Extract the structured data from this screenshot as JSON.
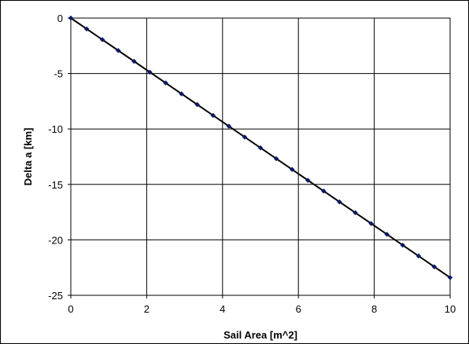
{
  "chart_data": {
    "type": "scatter",
    "title": "",
    "xlabel": "Sail Area [m^2]",
    "ylabel": "Delta a [km]",
    "xlim": [
      0,
      10
    ],
    "ylim": [
      -25,
      0
    ],
    "xticks": [
      "0",
      "2",
      "4",
      "6",
      "8",
      "10"
    ],
    "yticks": [
      "0",
      "-5",
      "-10",
      "-15",
      "-20",
      "-25"
    ],
    "grid": true,
    "legend": "none",
    "series": [
      {
        "type": "scatter",
        "color": "#0b1a6b",
        "x": [
          0.0,
          0.417,
          0.833,
          1.25,
          1.667,
          2.083,
          2.5,
          2.917,
          3.333,
          3.75,
          4.167,
          4.583,
          5.0,
          5.417,
          5.833,
          6.25,
          6.667,
          7.083,
          7.5,
          7.917,
          8.333,
          8.75,
          9.167,
          9.583,
          10.0
        ],
        "y": [
          0.0,
          -0.98,
          -1.95,
          -2.93,
          -3.9,
          -4.88,
          -5.85,
          -6.83,
          -7.8,
          -8.78,
          -9.75,
          -10.73,
          -11.7,
          -12.68,
          -13.65,
          -14.63,
          -15.6,
          -16.58,
          -17.55,
          -18.53,
          -19.5,
          -20.48,
          -21.45,
          -22.43,
          -23.4
        ]
      },
      {
        "type": "line",
        "color": "#000000",
        "x": [
          0,
          10
        ],
        "y": [
          0,
          -23.4
        ]
      }
    ]
  }
}
